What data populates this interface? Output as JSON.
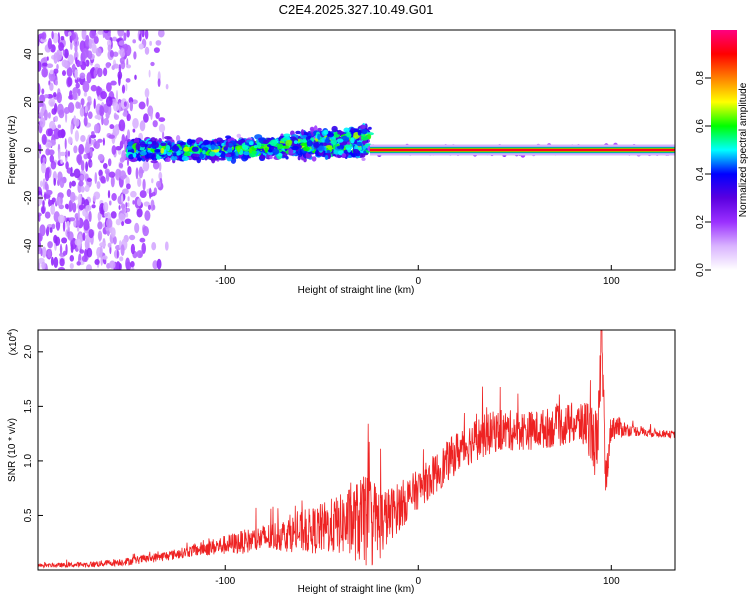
{
  "title": "C2E4.2025.327.10.49.G01",
  "chart_data": [
    {
      "type": "heatmap",
      "name": "spectrogram",
      "xlabel": "Height of straight line (km)",
      "ylabel": "Frequency (Hz)",
      "xlim": [
        -197,
        133
      ],
      "ylim": [
        -50,
        50
      ],
      "xticks": [
        -100,
        0,
        100
      ],
      "xtick_labels": [
        "-100",
        "0",
        "100"
      ],
      "yticks": [
        -40,
        -20,
        0,
        20,
        40
      ],
      "ytick_labels": [
        "-40",
        "-20",
        "0",
        "20",
        "40"
      ],
      "colorbar": {
        "label": "Normalized spectral amplitude",
        "range": [
          0,
          1
        ],
        "ticks": [
          0,
          0.2,
          0.4,
          0.6,
          0.8
        ],
        "tick_labels": [
          "0.0",
          "0.2",
          "0.4",
          "0.6",
          "0.8"
        ],
        "colors": [
          "#ffffff",
          "#d9b3ff",
          "#9b30ff",
          "#5a00e0",
          "#0000ff",
          "#00ffff",
          "#00ff00",
          "#ffff00",
          "#ff8000",
          "#ff0000",
          "#ff0080"
        ]
      },
      "features": {
        "noise_region_x": [
          -197,
          -130
        ],
        "signal_band_center_hz": 0,
        "diffuse_band_x": [
          -150,
          -25
        ],
        "diffuse_band_rising_end_hz": 8,
        "narrow_band_x": [
          -25,
          133
        ],
        "narrow_band_peak_amplitude": 1.0
      }
    },
    {
      "type": "line",
      "name": "snr",
      "xlabel": "Height of straight line (km)",
      "ylabel": "SNR (10 * v/v)",
      "y_multiplier": "(x10",
      "y_multiplier_exp": "4",
      "y_multiplier_close": ")",
      "xlim": [
        -197,
        133
      ],
      "ylim": [
        0,
        22000
      ],
      "xticks": [
        -100,
        0,
        100
      ],
      "xtick_labels": [
        "-100",
        "0",
        "100"
      ],
      "yticks": [
        5000,
        10000,
        15000,
        20000
      ],
      "ytick_labels": [
        "0.5",
        "1.0",
        "1.5",
        "2.0"
      ],
      "color": "#ee2222",
      "series": {
        "x": [
          -197,
          -170,
          -150,
          -130,
          -110,
          -90,
          -70,
          -55,
          -40,
          -30,
          -20,
          -10,
          0,
          10,
          20,
          30,
          40,
          50,
          60,
          70,
          80,
          88,
          93,
          95,
          97,
          100,
          110,
          120,
          133
        ],
        "y": [
          400,
          500,
          800,
          1300,
          2000,
          2600,
          3200,
          3600,
          4200,
          4500,
          4300,
          5800,
          7400,
          9000,
          10800,
          12000,
          12700,
          12800,
          12800,
          13100,
          13400,
          13300,
          11000,
          21800,
          8000,
          13200,
          12800,
          12600,
          12400
        ]
      },
      "noise_amplitude": {
        "x": [
          -197,
          -120,
          -70,
          -40,
          -25,
          -15,
          0,
          30,
          60,
          85,
          93,
          98,
          110,
          133
        ],
        "amp": [
          150,
          500,
          1500,
          2800,
          4500,
          2500,
          1800,
          2000,
          1800,
          2000,
          3500,
          1500,
          500,
          300
        ]
      }
    }
  ]
}
